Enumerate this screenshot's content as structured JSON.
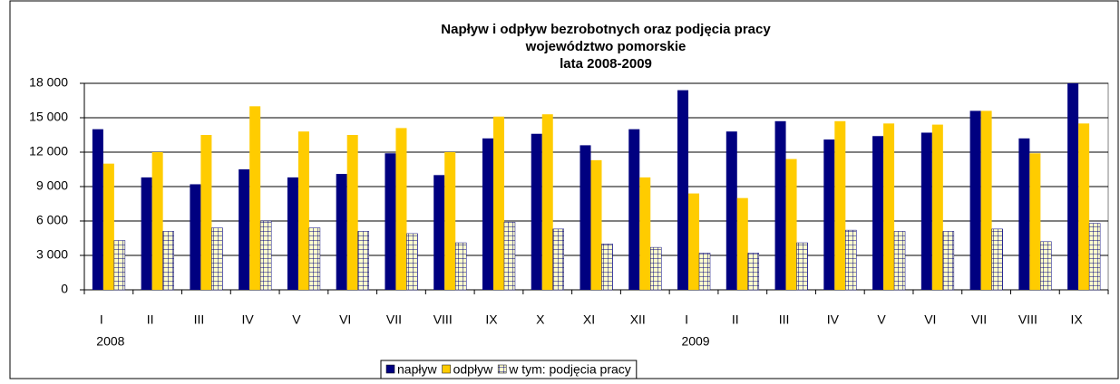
{
  "chart_data": {
    "type": "bar",
    "title": [
      "Napływ i odpływ bezrobotnych oraz podjęcia pracy",
      "województwo pomorskie",
      "lata 2008-2009"
    ],
    "categories": [
      "I",
      "II",
      "III",
      "IV",
      "V",
      "VI",
      "VII",
      "VIII",
      "IX",
      "X",
      "XI",
      "XII",
      "I",
      "II",
      "III",
      "IV",
      "V",
      "VI",
      "VII",
      "VIII",
      "IX"
    ],
    "category_years": [
      "2008",
      null,
      null,
      null,
      null,
      null,
      null,
      null,
      null,
      null,
      null,
      null,
      "2009",
      null,
      null,
      null,
      null,
      null,
      null,
      null,
      null
    ],
    "series": [
      {
        "name": "napływ",
        "color": "#000080",
        "values": [
          14000,
          9800,
          9200,
          10500,
          9800,
          10100,
          11900,
          10000,
          13200,
          13600,
          12600,
          14000,
          17400,
          13800,
          14700,
          13100,
          13400,
          13700,
          15600,
          13200,
          18000
        ]
      },
      {
        "name": "odpływ",
        "color": "#ffcc00",
        "values": [
          11000,
          12000,
          13500,
          16000,
          13800,
          13500,
          14100,
          12000,
          15100,
          15300,
          11300,
          9800,
          8400,
          8000,
          11400,
          14700,
          14500,
          14400,
          15600,
          11900,
          14500
        ]
      },
      {
        "name": "w tym: podjęcia pracy",
        "color": "#ffffcc",
        "hatch": "#000080",
        "values": [
          4300,
          5100,
          5400,
          6000,
          5400,
          5100,
          4900,
          4100,
          5900,
          5300,
          4000,
          3700,
          3200,
          3200,
          4100,
          5200,
          5100,
          5100,
          5300,
          4200,
          5800
        ]
      }
    ],
    "ylim": [
      0,
      18000
    ],
    "yticks": [
      0,
      {
        "value": 3000,
        "label": "3 000"
      },
      {
        "value": 6000,
        "label": "6 000"
      },
      {
        "value": 9000,
        "label": "9 000"
      },
      {
        "value": 12000,
        "label": "12 000"
      },
      {
        "value": 15000,
        "label": "15 000"
      },
      {
        "value": 18000,
        "label": "18 000"
      }
    ],
    "grid": true,
    "legend": "bottom"
  }
}
